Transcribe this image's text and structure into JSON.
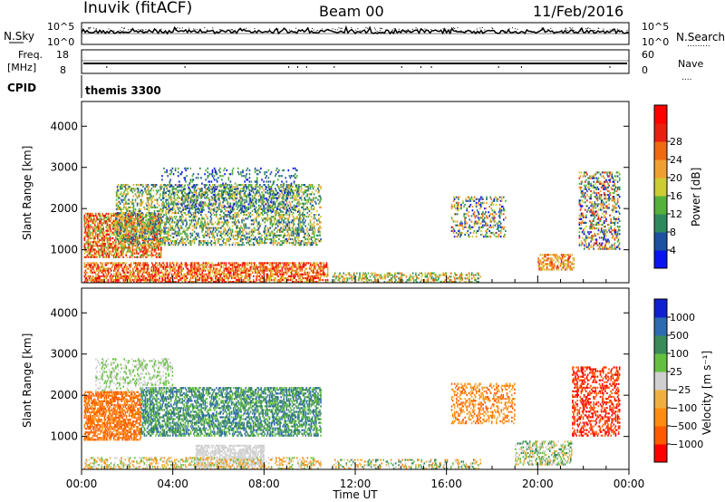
{
  "header": {
    "station": "Inuvik (fitACF)",
    "beam": "Beam 00",
    "date": "11/Feb/2016"
  },
  "noise_panel": {
    "left_label": "N.Sky",
    "right_label": "N.Search",
    "right_legend": ".........",
    "y_left_top": "10^5",
    "y_left_bottom": "10^0",
    "y_right_top": "10^5",
    "y_right_bottom": "10^0"
  },
  "freq_panel": {
    "left_label_1": "Freq.",
    "left_label_2": "[MHz]",
    "right_label": "Nave",
    "right_legend": "....",
    "y_left_top": "18",
    "y_left_bottom": "8",
    "y_right_top": "60",
    "y_right_bottom": "0"
  },
  "cpid": {
    "label": "CPID",
    "value": "themis 3300"
  },
  "colors": {
    "power_scale": [
      "#0a14f0",
      "#1e4fa0",
      "#2e8a5e",
      "#56b03c",
      "#cccc33",
      "#f0a030",
      "#f06a10",
      "#e82010",
      "#ff0000"
    ],
    "velocity_scale": [
      "#ff0000",
      "#ff5a00",
      "#ff8c10",
      "#f0b040",
      "#d0d0d0",
      "#66c040",
      "#3a8a5a",
      "#2e6ab0",
      "#1020d0"
    ]
  },
  "chart_data": [
    {
      "type": "heatmap",
      "name": "power",
      "ylabel": "Slant Range [km]",
      "y_ticks": [
        "1000",
        "2000",
        "3000",
        "4000"
      ],
      "ylim": [
        200,
        4600
      ],
      "xlim": [
        0,
        24
      ],
      "colorbar_label": "Power [dB]",
      "colorbar_ticks": [
        "4",
        "8",
        "12",
        "16",
        "20",
        "24",
        "28"
      ],
      "colorbar_range": [
        0,
        32
      ]
    },
    {
      "type": "heatmap",
      "name": "velocity",
      "ylabel": "Slant Range [km]",
      "y_ticks": [
        "1000",
        "2000",
        "3000",
        "4000"
      ],
      "ylim": [
        200,
        4600
      ],
      "xlim": [
        0,
        24
      ],
      "colorbar_label": "Velocity [m s⁻¹]",
      "colorbar_ticks": [
        "1000",
        "500",
        "100",
        "25",
        "−25",
        "−100",
        "−500",
        "−1000"
      ]
    }
  ],
  "x_axis": {
    "ticks": [
      "00:00",
      "04:00",
      "08:00",
      "12:00",
      "16:00",
      "20:00",
      "00:00"
    ],
    "label": "Time UT"
  }
}
